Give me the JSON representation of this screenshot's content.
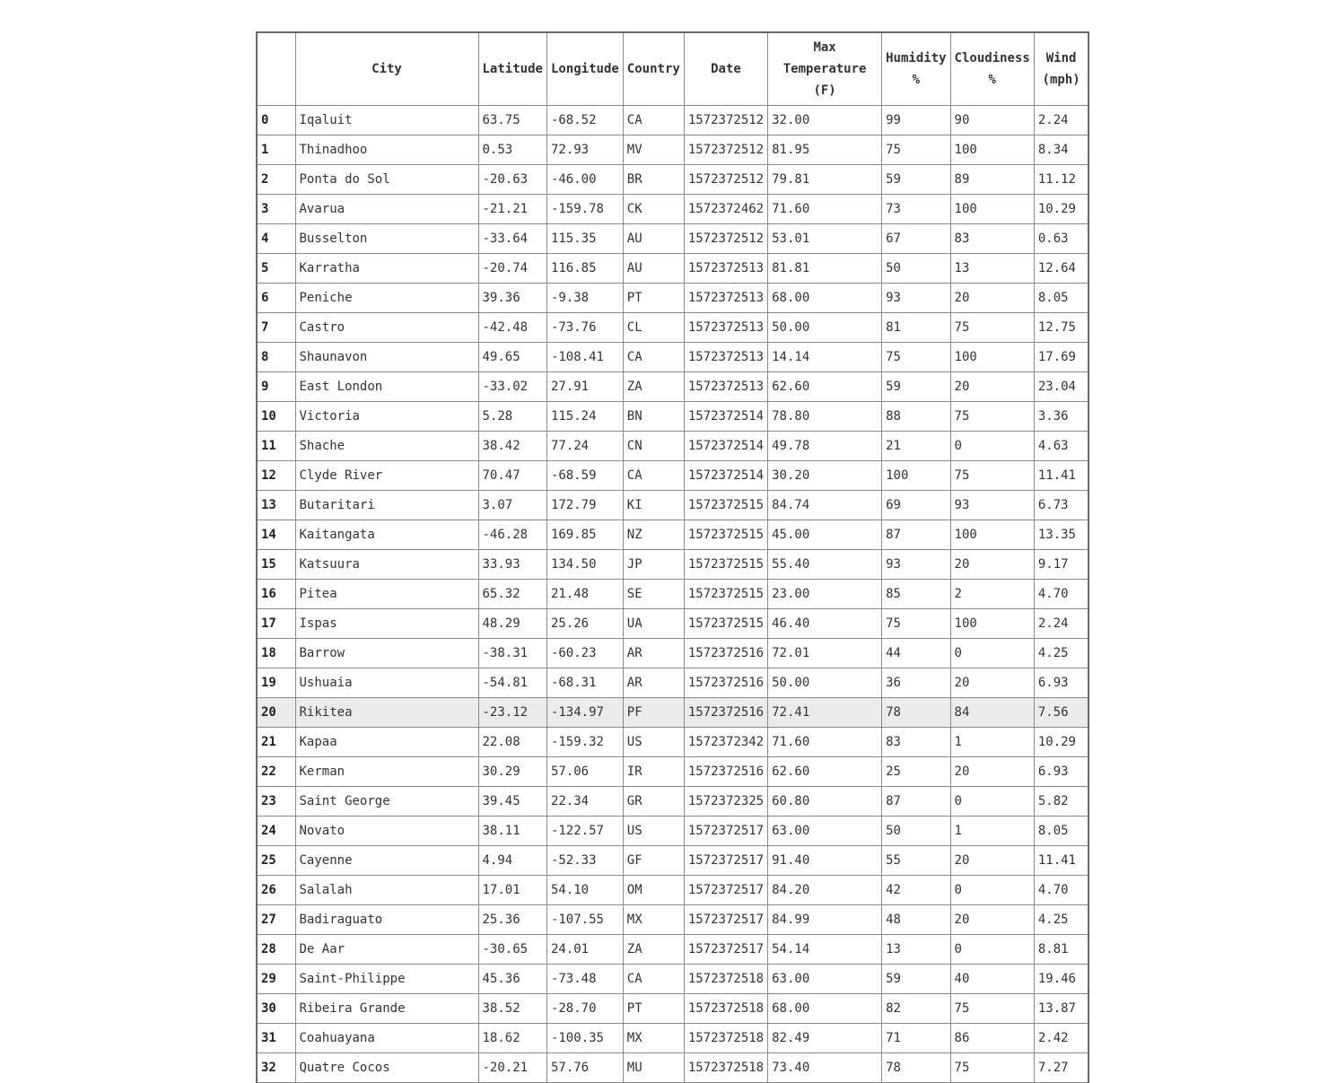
{
  "table": {
    "header": {
      "index": "",
      "city": "City",
      "latitude": "Latitude",
      "longitude": "Longitude",
      "country": "Country",
      "date": "Date",
      "max_temp": [
        "Max",
        "Temperature",
        "(F)"
      ],
      "humidity": [
        "Humidity",
        "%"
      ],
      "cloudiness": [
        "Cloudiness",
        "%"
      ],
      "wind": [
        "Wind",
        "(mph)"
      ]
    },
    "highlighted_row_index": 20,
    "rows": [
      [
        "0",
        "Iqaluit",
        "63.75",
        "-68.52",
        "CA",
        "1572372512",
        "32.00",
        "99",
        "90",
        "2.24"
      ],
      [
        "1",
        "Thinadhoo",
        "0.53",
        "72.93",
        "MV",
        "1572372512",
        "81.95",
        "75",
        "100",
        "8.34"
      ],
      [
        "2",
        "Ponta do Sol",
        "-20.63",
        "-46.00",
        "BR",
        "1572372512",
        "79.81",
        "59",
        "89",
        "11.12"
      ],
      [
        "3",
        "Avarua",
        "-21.21",
        "-159.78",
        "CK",
        "1572372462",
        "71.60",
        "73",
        "100",
        "10.29"
      ],
      [
        "4",
        "Busselton",
        "-33.64",
        "115.35",
        "AU",
        "1572372512",
        "53.01",
        "67",
        "83",
        "0.63"
      ],
      [
        "5",
        "Karratha",
        "-20.74",
        "116.85",
        "AU",
        "1572372513",
        "81.81",
        "50",
        "13",
        "12.64"
      ],
      [
        "6",
        "Peniche",
        "39.36",
        "-9.38",
        "PT",
        "1572372513",
        "68.00",
        "93",
        "20",
        "8.05"
      ],
      [
        "7",
        "Castro",
        "-42.48",
        "-73.76",
        "CL",
        "1572372513",
        "50.00",
        "81",
        "75",
        "12.75"
      ],
      [
        "8",
        "Shaunavon",
        "49.65",
        "-108.41",
        "CA",
        "1572372513",
        "14.14",
        "75",
        "100",
        "17.69"
      ],
      [
        "9",
        "East London",
        "-33.02",
        "27.91",
        "ZA",
        "1572372513",
        "62.60",
        "59",
        "20",
        "23.04"
      ],
      [
        "10",
        "Victoria",
        "5.28",
        "115.24",
        "BN",
        "1572372514",
        "78.80",
        "88",
        "75",
        "3.36"
      ],
      [
        "11",
        "Shache",
        "38.42",
        "77.24",
        "CN",
        "1572372514",
        "49.78",
        "21",
        "0",
        "4.63"
      ],
      [
        "12",
        "Clyde River",
        "70.47",
        "-68.59",
        "CA",
        "1572372514",
        "30.20",
        "100",
        "75",
        "11.41"
      ],
      [
        "13",
        "Butaritari",
        "3.07",
        "172.79",
        "KI",
        "1572372515",
        "84.74",
        "69",
        "93",
        "6.73"
      ],
      [
        "14",
        "Kaitangata",
        "-46.28",
        "169.85",
        "NZ",
        "1572372515",
        "45.00",
        "87",
        "100",
        "13.35"
      ],
      [
        "15",
        "Katsuura",
        "33.93",
        "134.50",
        "JP",
        "1572372515",
        "55.40",
        "93",
        "20",
        "9.17"
      ],
      [
        "16",
        "Pitea",
        "65.32",
        "21.48",
        "SE",
        "1572372515",
        "23.00",
        "85",
        "2",
        "4.70"
      ],
      [
        "17",
        "Ispas",
        "48.29",
        "25.26",
        "UA",
        "1572372515",
        "46.40",
        "75",
        "100",
        "2.24"
      ],
      [
        "18",
        "Barrow",
        "-38.31",
        "-60.23",
        "AR",
        "1572372516",
        "72.01",
        "44",
        "0",
        "4.25"
      ],
      [
        "19",
        "Ushuaia",
        "-54.81",
        "-68.31",
        "AR",
        "1572372516",
        "50.00",
        "36",
        "20",
        "6.93"
      ],
      [
        "20",
        "Rikitea",
        "-23.12",
        "-134.97",
        "PF",
        "1572372516",
        "72.41",
        "78",
        "84",
        "7.56"
      ],
      [
        "21",
        "Kapaa",
        "22.08",
        "-159.32",
        "US",
        "1572372342",
        "71.60",
        "83",
        "1",
        "10.29"
      ],
      [
        "22",
        "Kerman",
        "30.29",
        "57.06",
        "IR",
        "1572372516",
        "62.60",
        "25",
        "20",
        "6.93"
      ],
      [
        "23",
        "Saint George",
        "39.45",
        "22.34",
        "GR",
        "1572372325",
        "60.80",
        "87",
        "0",
        "5.82"
      ],
      [
        "24",
        "Novato",
        "38.11",
        "-122.57",
        "US",
        "1572372517",
        "63.00",
        "50",
        "1",
        "8.05"
      ],
      [
        "25",
        "Cayenne",
        "4.94",
        "-52.33",
        "GF",
        "1572372517",
        "91.40",
        "55",
        "20",
        "11.41"
      ],
      [
        "26",
        "Salalah",
        "17.01",
        "54.10",
        "OM",
        "1572372517",
        "84.20",
        "42",
        "0",
        "4.70"
      ],
      [
        "27",
        "Badiraguato",
        "25.36",
        "-107.55",
        "MX",
        "1572372517",
        "84.99",
        "48",
        "20",
        "4.25"
      ],
      [
        "28",
        "De Aar",
        "-30.65",
        "24.01",
        "ZA",
        "1572372517",
        "54.14",
        "13",
        "0",
        "8.81"
      ],
      [
        "29",
        "Saint-Philippe",
        "45.36",
        "-73.48",
        "CA",
        "1572372518",
        "63.00",
        "59",
        "40",
        "19.46"
      ],
      [
        "30",
        "Ribeira Grande",
        "38.52",
        "-28.70",
        "PT",
        "1572372518",
        "68.00",
        "82",
        "75",
        "13.87"
      ],
      [
        "31",
        "Coahuayana",
        "18.62",
        "-100.35",
        "MX",
        "1572372518",
        "82.49",
        "71",
        "86",
        "2.42"
      ],
      [
        "32",
        "Quatre Cocos",
        "-20.21",
        "57.76",
        "MU",
        "1572372518",
        "73.40",
        "78",
        "75",
        "7.27"
      ]
    ]
  }
}
